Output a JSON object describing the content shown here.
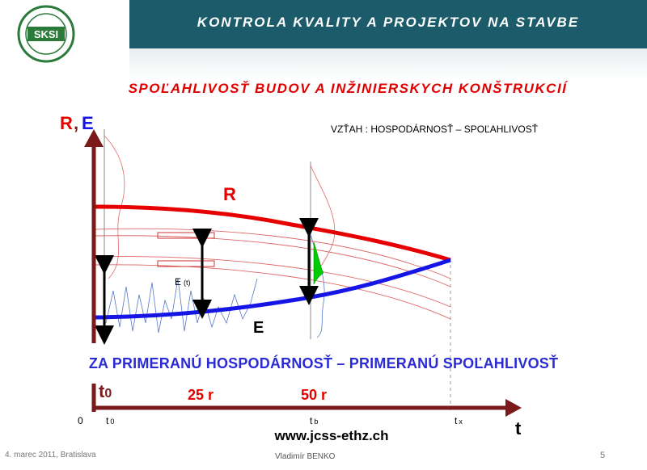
{
  "header": {
    "title": "KONTROLA KVALITY A PROJEKTOV NA STAVBE"
  },
  "logo": {
    "text": "SKSI",
    "ring_text": "SLOVENSKÁ KOMORA STAVEBNÝCH INŽINIEROV"
  },
  "slide": {
    "subtitle": "SPOĽAHLIVOSŤ BUDOV A INŽINIERSKYCH KONŠTRUKCIÍ",
    "relation": "VZŤAH : HOSPODÁRNOSŤ – SPOĽAHLIVOSŤ",
    "statement": "ZA  PRIMERANÚ HOSPODÁRNOSŤ – PRIMERANÚ SPOĽAHLIVOSŤ",
    "website": "www.jcss-ethz.ch"
  },
  "diagram": {
    "y_axis_label_r": "R",
    "y_axis_label_comma": ",",
    "y_axis_label_e": "E",
    "curve_r_label": "R",
    "curve_e_label": "E",
    "e_t_label": "E",
    "e_t_sub": "(t)",
    "t0_big": "t",
    "t0_big_sub": "0",
    "period_25": "25 r",
    "period_50": "50 r",
    "origin": "0",
    "tick_t0": "t",
    "tick_t0_sub": "0",
    "tick_tb": "t",
    "tick_tb_sub": "b",
    "tick_tx": "t",
    "tick_tx_sub": "x",
    "x_axis_label": "t",
    "colors": {
      "resistance": "#e60000",
      "effect": "#1515e6",
      "axis": "#7a1a1a",
      "failure_area": "#00cc00"
    }
  },
  "footer": {
    "date_place": "4. marec 2011, Bratislava",
    "author": "Vladimír BENKO",
    "page": "5"
  }
}
